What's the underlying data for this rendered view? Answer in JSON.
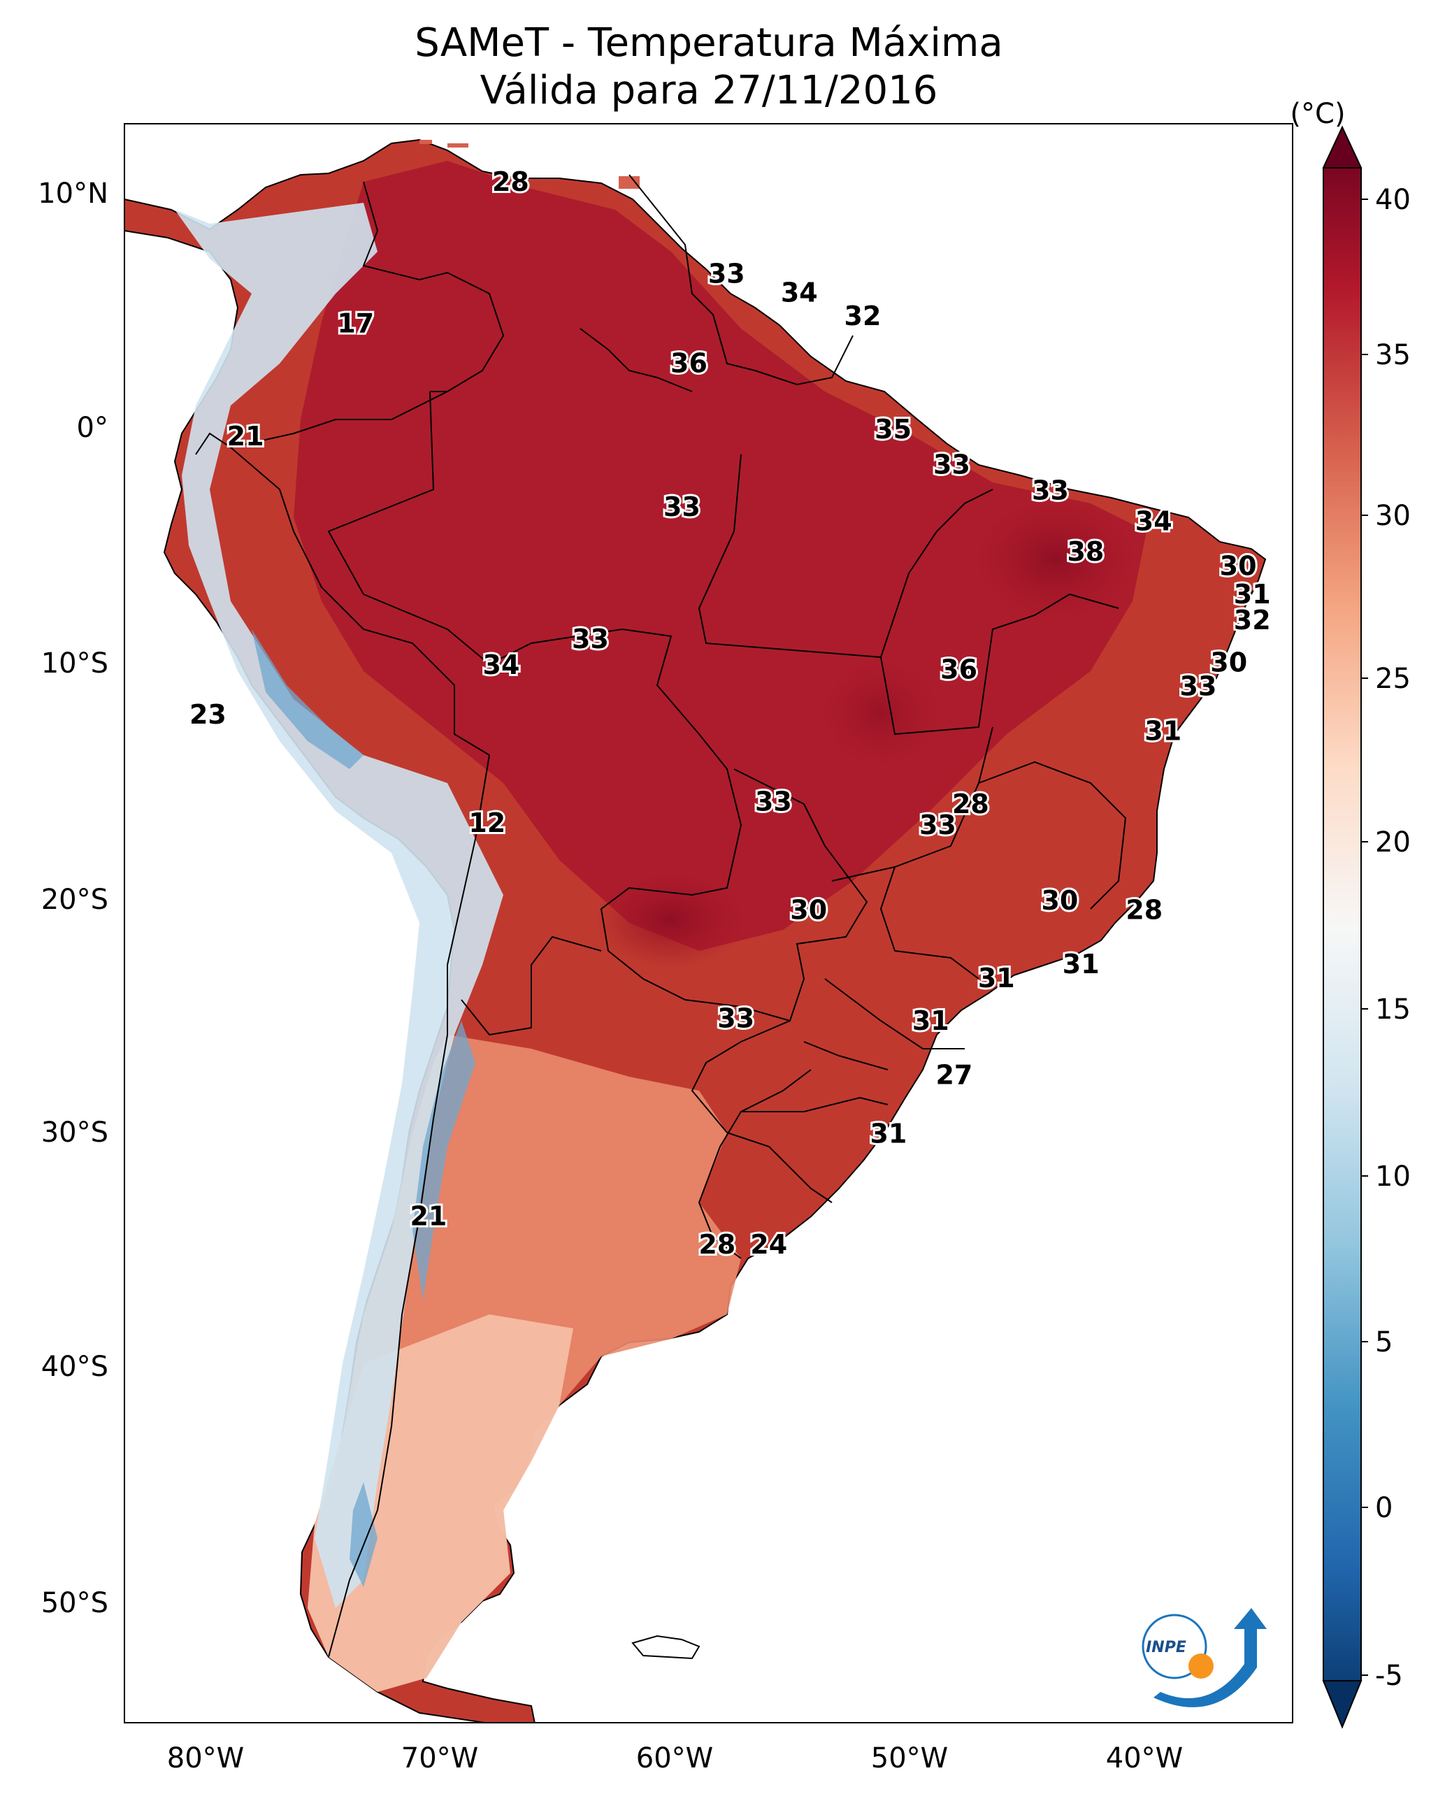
{
  "title_line1": "SAMeT - Temperatura Máxima",
  "title_line2": "Válida para 27/11/2016",
  "colorbar": {
    "unit_label": "(°C)",
    "min": -5,
    "max": 40,
    "ticks": [
      "40",
      "35",
      "30",
      "25",
      "20",
      "15",
      "10",
      "5",
      "0",
      "-5"
    ],
    "extend": "both",
    "colormap": [
      "#053061",
      "#2166ac",
      "#4393c3",
      "#92c5de",
      "#d1e5f0",
      "#f7f7f7",
      "#fddbc7",
      "#f4a582",
      "#d6604d",
      "#b2182b",
      "#67001f"
    ]
  },
  "axes": {
    "lon_ticks": [
      "80°W",
      "70°W",
      "60°W",
      "50°W",
      "40°W"
    ],
    "lat_ticks": [
      "10°N",
      "0°",
      "10°S",
      "20°S",
      "30°S",
      "40°S",
      "50°S"
    ]
  },
  "contour_labels": [
    {
      "text": "28",
      "lon": -67,
      "lat": 10.5
    },
    {
      "text": "33",
      "lon": -57.8,
      "lat": 6.6
    },
    {
      "text": "34",
      "lon": -54.7,
      "lat": 5.8
    },
    {
      "text": "32",
      "lon": -52,
      "lat": 4.8
    },
    {
      "text": "17",
      "lon": -73.6,
      "lat": 4.5
    },
    {
      "text": "36",
      "lon": -59.4,
      "lat": 2.8
    },
    {
      "text": "35",
      "lon": -50.7,
      "lat": 0
    },
    {
      "text": "21",
      "lon": -78.3,
      "lat": -0.3
    },
    {
      "text": "33",
      "lon": -48.2,
      "lat": -1.5
    },
    {
      "text": "33",
      "lon": -44,
      "lat": -2.6
    },
    {
      "text": "33",
      "lon": -59.7,
      "lat": -3.3
    },
    {
      "text": "34",
      "lon": -39.6,
      "lat": -3.9
    },
    {
      "text": "38",
      "lon": -42.5,
      "lat": -5.2
    },
    {
      "text": "30",
      "lon": -36,
      "lat": -5.8
    },
    {
      "text": "31",
      "lon": -35.4,
      "lat": -7
    },
    {
      "text": "32",
      "lon": -35.4,
      "lat": -8.1
    },
    {
      "text": "33",
      "lon": -63.6,
      "lat": -8.9
    },
    {
      "text": "30",
      "lon": -36.4,
      "lat": -9.9
    },
    {
      "text": "34",
      "lon": -67.4,
      "lat": -10
    },
    {
      "text": "36",
      "lon": -47.9,
      "lat": -10.2
    },
    {
      "text": "33",
      "lon": -37.7,
      "lat": -10.9
    },
    {
      "text": "23",
      "lon": -79.9,
      "lat": -12.1
    },
    {
      "text": "31",
      "lon": -39.2,
      "lat": -12.8
    },
    {
      "text": "33",
      "lon": -55.8,
      "lat": -15.8
    },
    {
      "text": "28",
      "lon": -47.4,
      "lat": -15.9
    },
    {
      "text": "12",
      "lon": -68,
      "lat": -16.7
    },
    {
      "text": "33",
      "lon": -48.8,
      "lat": -16.8
    },
    {
      "text": "30",
      "lon": -43.6,
      "lat": -20
    },
    {
      "text": "30",
      "lon": -54.3,
      "lat": -20.4
    },
    {
      "text": "28",
      "lon": -40,
      "lat": -20.4
    },
    {
      "text": "31",
      "lon": -42.7,
      "lat": -22.7
    },
    {
      "text": "31",
      "lon": -46.3,
      "lat": -23.3
    },
    {
      "text": "33",
      "lon": -57.4,
      "lat": -25
    },
    {
      "text": "31",
      "lon": -49.1,
      "lat": -25.1
    },
    {
      "text": "27",
      "lon": -48.1,
      "lat": -27.4
    },
    {
      "text": "31",
      "lon": -50.9,
      "lat": -29.9
    },
    {
      "text": "21",
      "lon": -70.5,
      "lat": -33.4
    },
    {
      "text": "28",
      "lon": -58.2,
      "lat": -34.6
    },
    {
      "text": "24",
      "lon": -56,
      "lat": -34.6
    }
  ],
  "logo": {
    "text": "INPE"
  }
}
